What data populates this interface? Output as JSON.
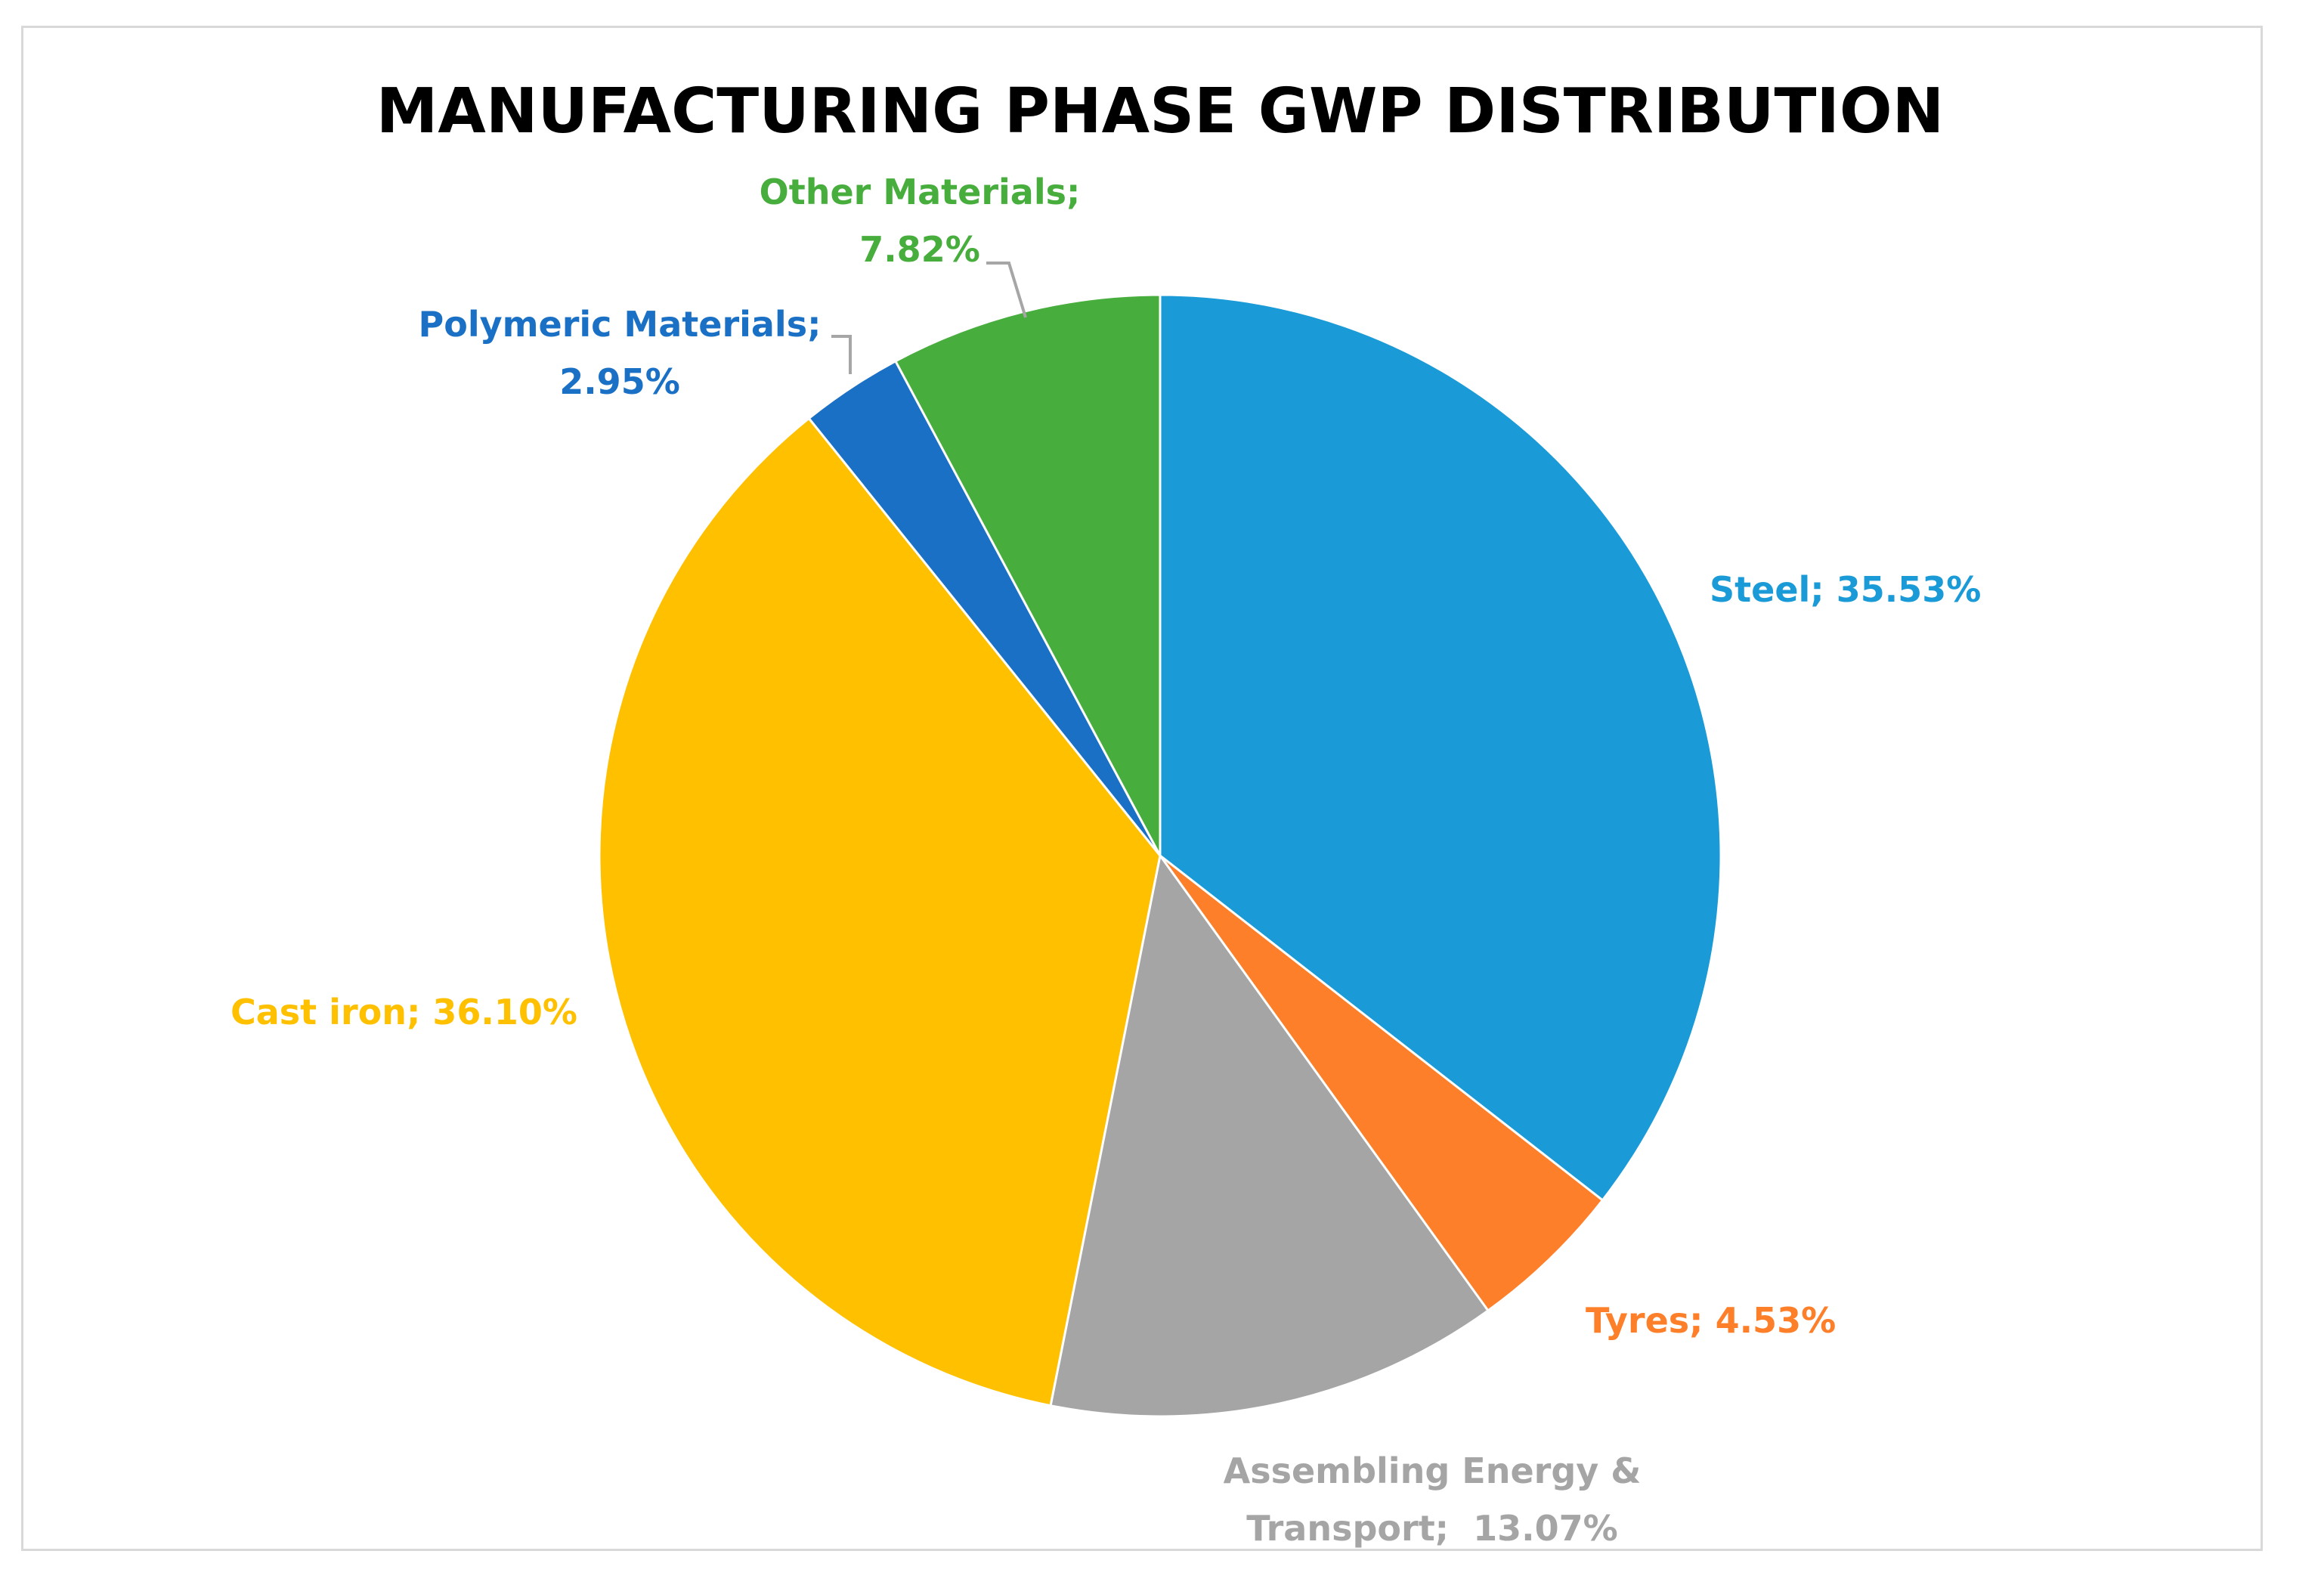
{
  "chart_data": {
    "type": "pie",
    "title": "MANUFACTURING PHASE GWP DISTRIBUTION",
    "start_angle_deg": 0,
    "direction": "clockwise",
    "slices": [
      {
        "name": "Steel",
        "value": 35.53,
        "label_lines": [
          "Steel; 35.53%"
        ],
        "color": "#1a9ad6"
      },
      {
        "name": "Tyres",
        "value": 4.53,
        "label_lines": [
          "Tyres; 4.53%"
        ],
        "color": "#fd7f29"
      },
      {
        "name": "Assembling Energy & Transport",
        "value": 13.07,
        "label_lines": [
          "Assembling Energy &",
          "Transport;  13.07%"
        ],
        "color": "#a5a5a5"
      },
      {
        "name": "Cast iron",
        "value": 36.1,
        "label_lines": [
          "Cast iron; 36.10%"
        ],
        "color": "#ffc000"
      },
      {
        "name": "Polymeric Materials",
        "value": 2.95,
        "label_lines": [
          "Polymeric Materials;",
          "2.95%"
        ],
        "color": "#1a70c5"
      },
      {
        "name": "Other Materials",
        "value": 7.82,
        "label_lines": [
          "Other Materials;",
          "7.82%"
        ],
        "color": "#47ad3c"
      }
    ],
    "legend": "none"
  }
}
